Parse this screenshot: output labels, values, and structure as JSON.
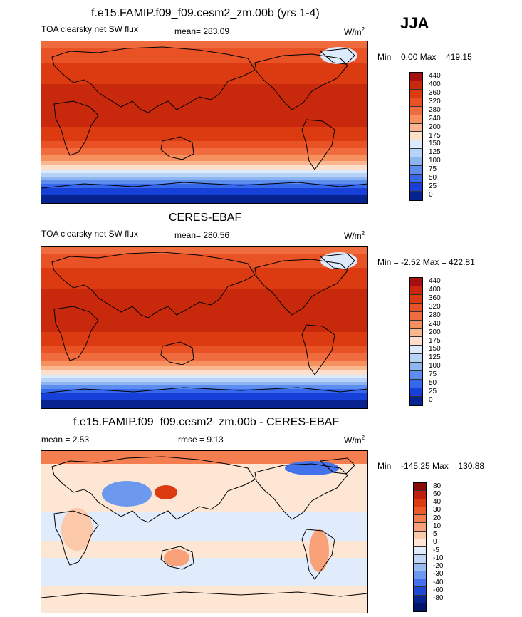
{
  "header": {
    "top_title": "f.e15.FAMIP.f09_f09.cesm2_zm.00b (yrs 1-4)",
    "season": "JJA"
  },
  "panel1": {
    "variable": "TOA clearsky net SW flux",
    "mean_label": "mean= 283.09",
    "units": "W/m",
    "units_sup": "2",
    "minmax": "Min =   0.00 Max = 419.15"
  },
  "panel2": {
    "title": "CERES-EBAF",
    "variable": "TOA clearsky net SW flux",
    "mean_label": "mean= 280.56",
    "units": "W/m",
    "units_sup": "2",
    "minmax": "Min =  -2.52 Max = 422.81"
  },
  "panel3": {
    "title": "f.e15.FAMIP.f09_f09.cesm2_zm.00b - CERES-EBAF",
    "mean_label": "mean =   2.53",
    "rmse_label": "rmse =   9.13",
    "units": "W/m",
    "units_sup": "2",
    "minmax": "Min = -145.25 Max = 130.88"
  },
  "colorbars": {
    "abs_levels": [
      "440",
      "400",
      "360",
      "320",
      "280",
      "240",
      "200",
      "175",
      "150",
      "125",
      "100",
      "75",
      "50",
      "25",
      "0"
    ],
    "abs_colors": [
      "#a50f0f",
      "#c8280c",
      "#dc3a10",
      "#e85225",
      "#f06c3e",
      "#f6905f",
      "#fab78f",
      "#fce0cb",
      "#ddeafc",
      "#b8d3f8",
      "#8cb5f2",
      "#5e8df0",
      "#3668ec",
      "#1640d8",
      "#06238f"
    ],
    "diff_levels": [
      "80",
      "60",
      "40",
      "30",
      "20",
      "10",
      "5",
      "0",
      "-5",
      "-10",
      "-20",
      "-30",
      "-40",
      "-60",
      "-80"
    ],
    "diff_colors": [
      "#8a0a0a",
      "#c01e10",
      "#dc3a10",
      "#ec5a2a",
      "#f47e50",
      "#f9a27a",
      "#fcc9aa",
      "#fde6d4",
      "#e0ecfc",
      "#c0d7f8",
      "#98bcf2",
      "#6c98ee",
      "#4472ea",
      "#1c48d6",
      "#08258f",
      "#02156a"
    ]
  },
  "chart_data": [
    {
      "type": "heatmap",
      "title": "f.e15.FAMIP.f09_f09.cesm2_zm.00b (yrs 1-4)",
      "subtitle": "TOA clearsky net SW flux",
      "season": "JJA",
      "units": "W/m2",
      "mean": 283.09,
      "min": 0.0,
      "max": 419.15,
      "contour_levels": [
        0,
        25,
        50,
        75,
        100,
        125,
        150,
        175,
        200,
        240,
        280,
        320,
        360,
        400,
        440
      ]
    },
    {
      "type": "heatmap",
      "title": "CERES-EBAF",
      "subtitle": "TOA clearsky net SW flux",
      "units": "W/m2",
      "mean": 280.56,
      "min": -2.52,
      "max": 422.81,
      "contour_levels": [
        0,
        25,
        50,
        75,
        100,
        125,
        150,
        175,
        200,
        240,
        280,
        320,
        360,
        400,
        440
      ]
    },
    {
      "type": "heatmap",
      "title": "f.e15.FAMIP.f09_f09.cesm2_zm.00b - CERES-EBAF",
      "units": "W/m2",
      "mean": 2.53,
      "rmse": 9.13,
      "min": -145.25,
      "max": 130.88,
      "contour_levels": [
        -80,
        -60,
        -40,
        -30,
        -20,
        -10,
        -5,
        0,
        5,
        10,
        20,
        30,
        40,
        60,
        80
      ]
    }
  ]
}
